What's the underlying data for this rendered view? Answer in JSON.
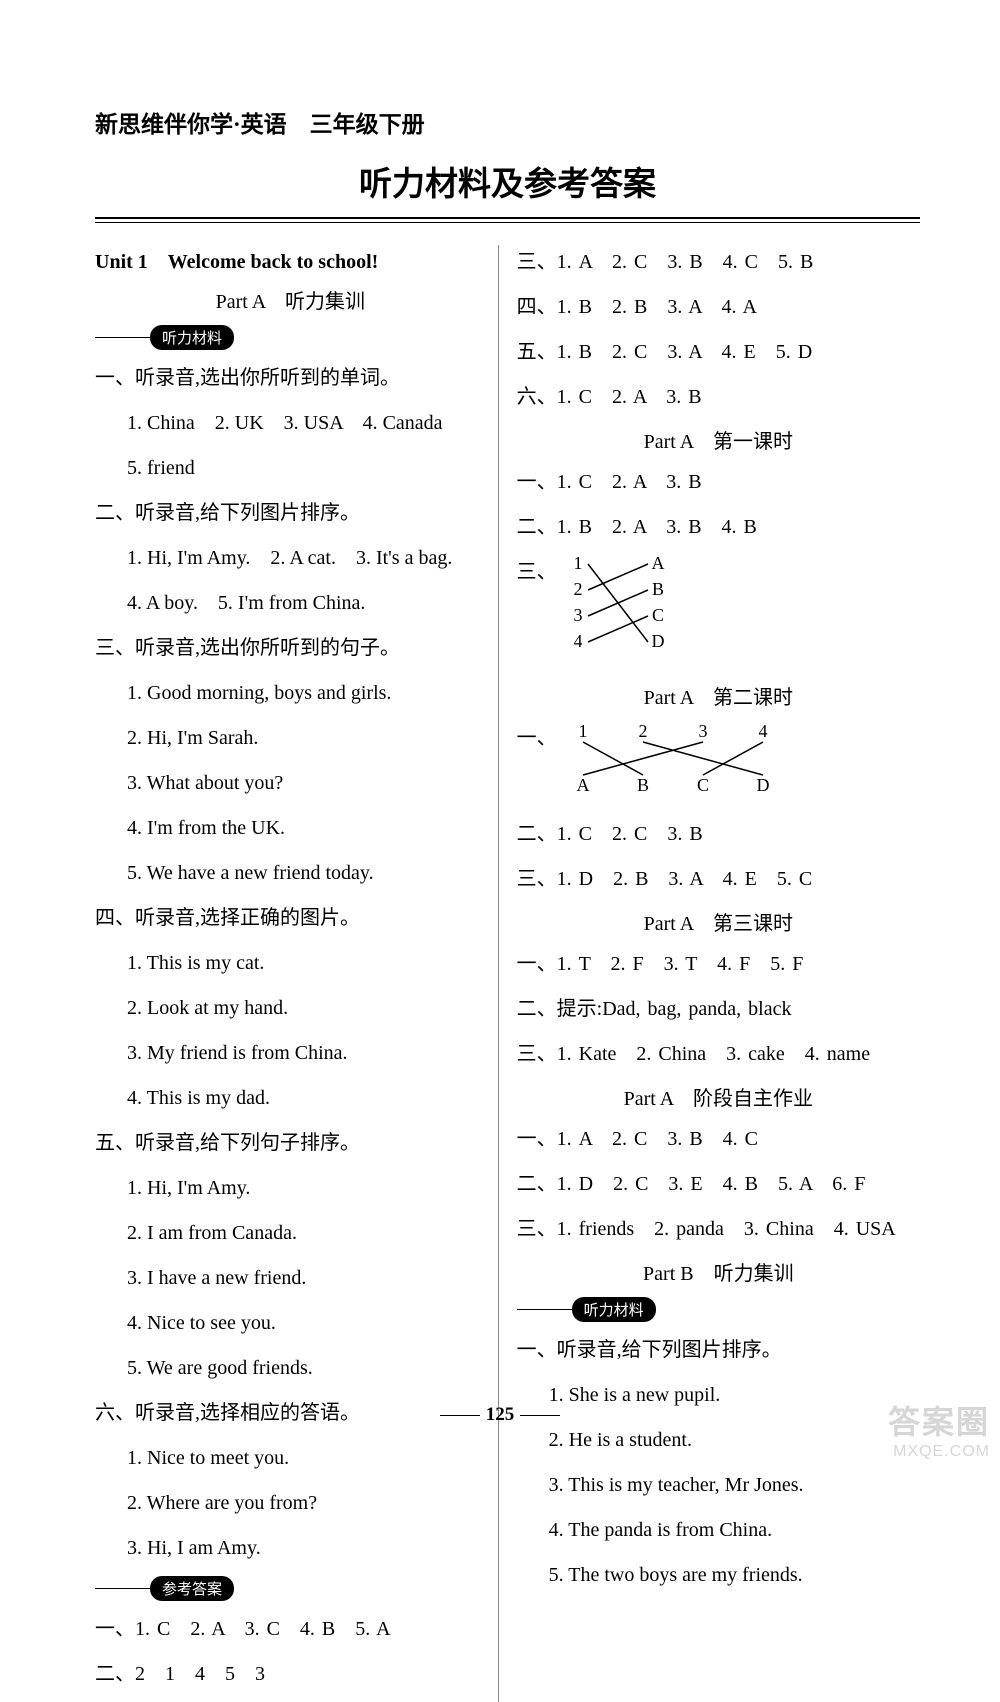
{
  "header": "新思维伴你学·英语　三年级下册",
  "title": "听力材料及参考答案",
  "left": {
    "unit_title": "Unit 1　Welcome back to school!",
    "part_a": "Part A　听力集训",
    "pill_listen": "听力材料",
    "s1": {
      "h": "一、听录音,选出你所听到的单词。",
      "l1": "1. China　2. UK　3. USA　4. Canada",
      "l2": "5. friend"
    },
    "s2": {
      "h": "二、听录音,给下列图片排序。",
      "l1": "1. Hi, I'm Amy.　2. A cat.　3. It's a bag.",
      "l2": "4. A boy.　5. I'm from China."
    },
    "s3": {
      "h": "三、听录音,选出你所听到的句子。",
      "l1": "1. Good morning, boys and girls.",
      "l2": "2. Hi, I'm Sarah.",
      "l3": "3. What about you?",
      "l4": "4. I'm from the UK.",
      "l5": "5. We have a new friend today."
    },
    "s4": {
      "h": "四、听录音,选择正确的图片。",
      "l1": "1. This is my cat.",
      "l2": "2. Look at my hand.",
      "l3": "3. My friend is from China.",
      "l4": "4. This is my dad."
    },
    "s5": {
      "h": "五、听录音,给下列句子排序。",
      "l1": "1. Hi, I'm Amy.",
      "l2": "2. I am from Canada.",
      "l3": "3. I have a new friend.",
      "l4": "4. Nice to see you.",
      "l5": "5. We are good friends."
    },
    "s6": {
      "h": "六、听录音,选择相应的答语。",
      "l1": "1. Nice to meet you.",
      "l2": "2. Where are you from?",
      "l3": "3. Hi, I am Amy."
    },
    "pill_ans": "参考答案",
    "a1": "一、1. C　2. A　3. C　4. B　5. A",
    "a2": "二、2　1　4　5　3"
  },
  "right": {
    "r3": "三、1. A　2. C　3. B　4. C　5. B",
    "r4": "四、1. B　2. B　3. A　4. A",
    "r5": "五、1. B　2. C　3. A　4. E　5. D",
    "r6": "六、1. C　2. A　3. B",
    "pa1_title": "Part A　第一课时",
    "pa1_1": "一、1. C　2. A　3. B",
    "pa1_2": "二、1. B　2. A　3. B　4. B",
    "pa1_3_h": "三、",
    "match1": {
      "left": [
        "1",
        "2",
        "3",
        "4"
      ],
      "right": [
        "A",
        "B",
        "C",
        "D"
      ],
      "edges": [
        [
          0,
          3
        ],
        [
          1,
          0
        ],
        [
          2,
          1
        ],
        [
          3,
          2
        ]
      ]
    },
    "pa2_title": "Part A　第二课时",
    "pa2_1_h": "一、",
    "match2": {
      "top": [
        "1",
        "2",
        "3",
        "4"
      ],
      "bottom": [
        "A",
        "B",
        "C",
        "D"
      ],
      "edges": [
        [
          0,
          1
        ],
        [
          1,
          3
        ],
        [
          2,
          0
        ],
        [
          3,
          2
        ]
      ]
    },
    "pa2_2": "二、1. C　2. C　3. B",
    "pa2_3": "三、1. D　2. B　3. A　4. E　5. C",
    "pa3_title": "Part A　第三课时",
    "pa3_1": "一、1. T　2. F　3. T　4. F　5. F",
    "pa3_2": "二、提示:Dad, bag, panda, black",
    "pa3_3": "三、1. Kate　2. China　3. cake　4. name",
    "pa_hw_title": "Part A　阶段自主作业",
    "hw1": "一、1. A　2. C　3. B　4. C",
    "hw2": "二、1. D　2. C　3. E　4. B　5. A　6. F",
    "hw3": "三、1. friends　2. panda　3. China　4. USA",
    "pb_title": "Part B　听力集训",
    "pill_listen": "听力材料",
    "pb1_h": "一、听录音,给下列图片排序。",
    "pb1_1": "1. She is a new pupil.",
    "pb1_2": "2. He is a student.",
    "pb1_3": "3. This is my teacher, Mr Jones.",
    "pb1_4": "4. The panda is from China.",
    "pb1_5": "5. The two boys are my friends."
  },
  "page_num": "125",
  "watermark": {
    "l1": "答案圈",
    "l2": "MXQE.COM"
  }
}
